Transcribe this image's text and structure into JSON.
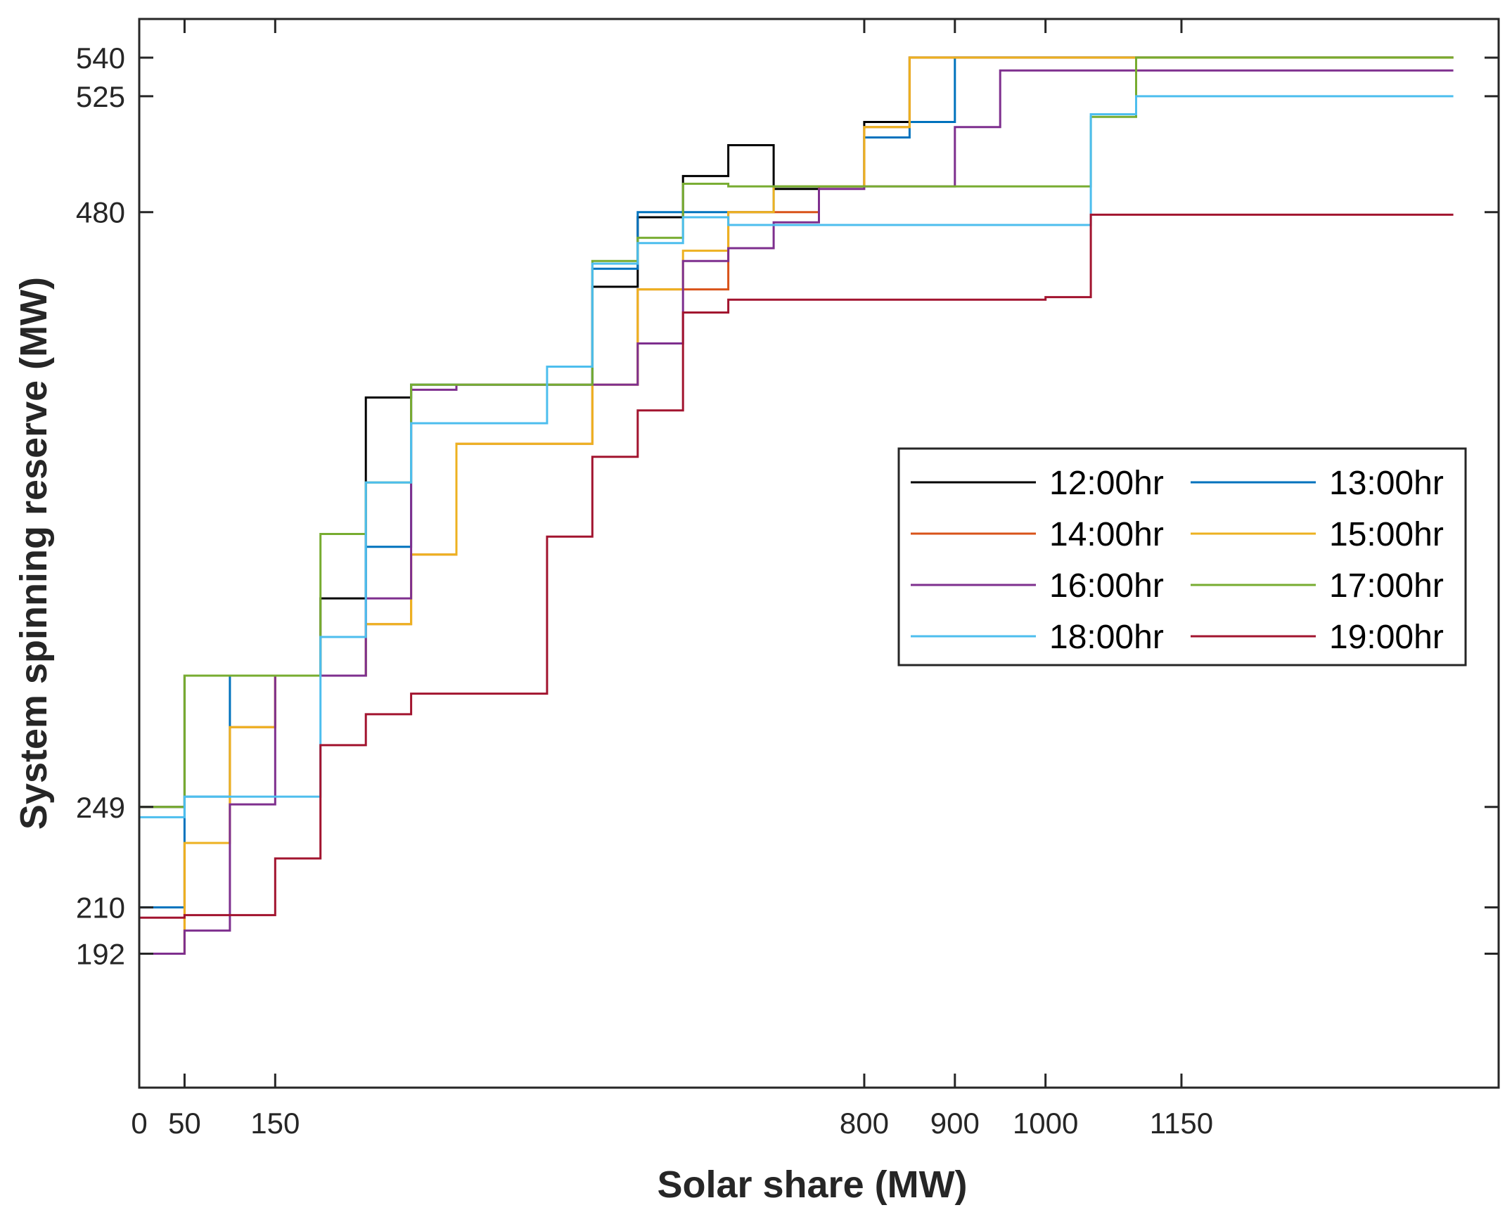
{
  "chart_data": {
    "type": "line",
    "step": "post",
    "title": "",
    "xlabel": "Solar share (MW)",
    "ylabel": "System spinning reserve (MW)",
    "xlim": [
      0,
      1500
    ],
    "ylim": [
      140,
      555
    ],
    "xticks": [
      0,
      50,
      150,
      800,
      900,
      1000,
      1150
    ],
    "yticks": [
      192,
      210,
      249,
      480,
      525,
      540
    ],
    "legend": {
      "position": "center-right",
      "columns": 2
    },
    "series": [
      {
        "name": "12:00hr",
        "color": "#000000",
        "x": [
          0,
          50,
          100,
          150,
          200,
          250,
          300,
          350,
          400,
          450,
          500,
          550,
          600,
          650,
          700,
          750,
          800,
          850,
          900,
          950,
          1000,
          1050,
          1100,
          1150
        ],
        "y": [
          249,
          300,
          300,
          300,
          330,
          408,
          413,
          413,
          413,
          413,
          451,
          478,
          494,
          506,
          489,
          490,
          515,
          540,
          540,
          540,
          540,
          540,
          540,
          540
        ]
      },
      {
        "name": "13:00hr",
        "color": "#0072BD",
        "x": [
          0,
          50,
          100,
          150,
          200,
          250,
          300,
          350,
          400,
          450,
          500,
          550,
          600,
          650,
          700,
          750,
          800,
          850,
          900,
          950,
          1000,
          1050,
          1100,
          1150
        ],
        "y": [
          210,
          253,
          300,
          300,
          300,
          350,
          413,
          413,
          413,
          413,
          458,
          480,
          480,
          480,
          490,
          490,
          509,
          515,
          540,
          540,
          540,
          540,
          540,
          540
        ]
      },
      {
        "name": "14:00hr",
        "color": "#D95319",
        "x": [
          0,
          50,
          100,
          150,
          200,
          250,
          300,
          350,
          400,
          450,
          500,
          550,
          600,
          650,
          700,
          750,
          800,
          850,
          900,
          950,
          1000,
          1050,
          1100,
          1150
        ],
        "y": [
          192,
          235,
          280,
          300,
          300,
          320,
          347,
          390,
          390,
          390,
          413,
          450,
          450,
          480,
          480,
          490,
          513,
          540,
          540,
          540,
          540,
          540,
          540,
          540
        ]
      },
      {
        "name": "15:00hr",
        "color": "#EDB120",
        "x": [
          0,
          50,
          100,
          150,
          200,
          250,
          300,
          350,
          400,
          450,
          500,
          550,
          600,
          650,
          700,
          750,
          800,
          850,
          900,
          950,
          1000,
          1050,
          1100,
          1150
        ],
        "y": [
          192,
          235,
          280,
          300,
          300,
          320,
          347,
          390,
          390,
          390,
          413,
          450,
          465,
          480,
          490,
          490,
          513,
          540,
          540,
          540,
          540,
          540,
          540,
          540
        ]
      },
      {
        "name": "16:00hr",
        "color": "#7E2F8E",
        "x": [
          0,
          50,
          100,
          150,
          200,
          250,
          300,
          350,
          400,
          450,
          500,
          550,
          600,
          650,
          700,
          750,
          800,
          850,
          900,
          950,
          1000,
          1050,
          1100,
          1150
        ],
        "y": [
          192,
          201,
          250,
          300,
          300,
          330,
          411,
          413,
          413,
          413,
          413,
          429,
          461,
          466,
          476,
          489,
          490,
          490,
          513,
          535,
          535,
          535,
          535,
          535
        ]
      },
      {
        "name": "17:00hr",
        "color": "#77AC30",
        "x": [
          0,
          50,
          100,
          150,
          200,
          250,
          300,
          350,
          400,
          450,
          500,
          550,
          600,
          650,
          700,
          750,
          800,
          850,
          900,
          950,
          1000,
          1050,
          1100,
          1150
        ],
        "y": [
          249,
          300,
          300,
          300,
          355,
          375,
          413,
          413,
          413,
          413,
          461,
          470,
          491,
          490,
          490,
          490,
          490,
          490,
          490,
          490,
          490,
          517,
          540,
          540
        ]
      },
      {
        "name": "18:00hr",
        "color": "#4DBEEE",
        "x": [
          0,
          50,
          100,
          150,
          200,
          250,
          300,
          350,
          400,
          450,
          500,
          550,
          600,
          650,
          700,
          750,
          800,
          850,
          900,
          950,
          1000,
          1050,
          1100,
          1150
        ],
        "y": [
          245,
          253,
          253,
          253,
          315,
          375,
          398,
          398,
          398,
          420,
          460,
          468,
          478,
          475,
          475,
          475,
          475,
          475,
          475,
          475,
          475,
          518,
          525,
          525
        ]
      },
      {
        "name": "19:00hr",
        "color": "#A2142F",
        "x": [
          0,
          50,
          100,
          150,
          200,
          250,
          300,
          350,
          400,
          450,
          500,
          550,
          600,
          650,
          700,
          750,
          800,
          850,
          900,
          950,
          1000,
          1050,
          1100,
          1150
        ],
        "y": [
          206,
          207,
          207,
          229,
          273,
          285,
          293,
          293,
          293,
          354,
          385,
          403,
          441,
          446,
          446,
          446,
          446,
          446,
          446,
          446,
          447,
          479,
          479,
          479
        ]
      }
    ]
  }
}
